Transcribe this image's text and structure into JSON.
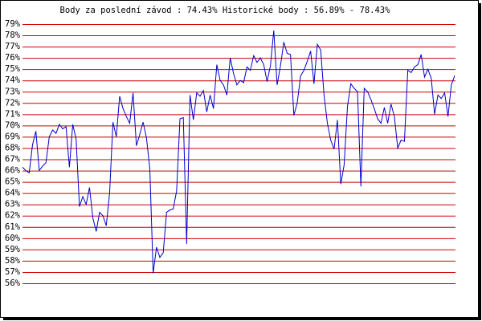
{
  "chart_data": {
    "type": "line",
    "title": "Body za poslední závod : 74.43%  Historické body : 56.89% - 78.43%",
    "values": [
      66.3,
      66.0,
      65.8,
      68.3,
      69.5,
      66.0,
      66.4,
      66.7,
      69.0,
      69.6,
      69.3,
      70.1,
      69.7,
      69.9,
      66.3,
      70.1,
      68.8,
      62.8,
      63.7,
      63.0,
      64.5,
      61.8,
      60.6,
      62.3,
      62.0,
      61.1,
      64.0,
      70.3,
      69.0,
      72.6,
      71.5,
      70.8,
      70.2,
      72.9,
      68.2,
      69.2,
      70.3,
      68.9,
      66.2,
      56.89,
      59.2,
      58.3,
      58.7,
      62.3,
      62.5,
      62.6,
      64.2,
      70.6,
      70.7,
      59.5,
      72.7,
      70.5,
      72.9,
      72.6,
      73.1,
      71.2,
      72.7,
      71.5,
      75.4,
      74.0,
      73.6,
      72.7,
      76.0,
      74.6,
      73.6,
      74.0,
      73.8,
      75.2,
      74.9,
      76.2,
      75.6,
      76.0,
      75.4,
      73.9,
      75.3,
      78.43,
      73.6,
      75.3,
      77.4,
      76.4,
      76.3,
      70.9,
      72.0,
      74.4,
      74.9,
      75.7,
      76.6,
      73.7,
      77.2,
      76.7,
      72.7,
      70.2,
      68.7,
      67.9,
      70.5,
      64.8,
      66.5,
      71.7,
      73.7,
      73.3,
      73.0,
      64.6,
      73.3,
      73.0,
      72.3,
      71.5,
      70.6,
      70.2,
      71.6,
      70.2,
      71.9,
      70.8,
      68.0,
      68.7,
      68.6,
      74.9,
      74.7,
      75.2,
      75.4,
      76.3,
      74.3,
      75.0,
      74.2,
      71.0,
      72.7,
      72.4,
      72.9,
      70.8,
      73.6,
      74.43
    ],
    "color": "#0000cc",
    "ylim": [
      56,
      79
    ],
    "yticks": [
      {
        "value": 79,
        "label": "79%"
      },
      {
        "value": 78,
        "label": "78%"
      },
      {
        "value": 77,
        "label": "77%"
      },
      {
        "value": 76,
        "label": "76%"
      },
      {
        "value": 75,
        "label": "75%"
      },
      {
        "value": 74,
        "label": "74%"
      },
      {
        "value": 73,
        "label": "73%"
      },
      {
        "value": 72,
        "label": "72%"
      },
      {
        "value": 71,
        "label": "71%"
      },
      {
        "value": 70,
        "label": "70%"
      },
      {
        "value": 69,
        "label": "69%"
      },
      {
        "value": 68,
        "label": "68%"
      },
      {
        "value": 67,
        "label": "67%"
      },
      {
        "value": 66,
        "label": "66%"
      },
      {
        "value": 65,
        "label": "65%"
      },
      {
        "value": 64,
        "label": "64%"
      },
      {
        "value": 63,
        "label": "63%"
      },
      {
        "value": 62,
        "label": "62%"
      },
      {
        "value": 61,
        "label": "61%"
      },
      {
        "value": 60,
        "label": "60%"
      },
      {
        "value": 59,
        "label": "59%"
      },
      {
        "value": 58,
        "label": "58%"
      },
      {
        "value": 57,
        "label": "57%"
      },
      {
        "value": 56,
        "label": "56%"
      }
    ],
    "grid": true,
    "grid_color": "#cc0000"
  }
}
